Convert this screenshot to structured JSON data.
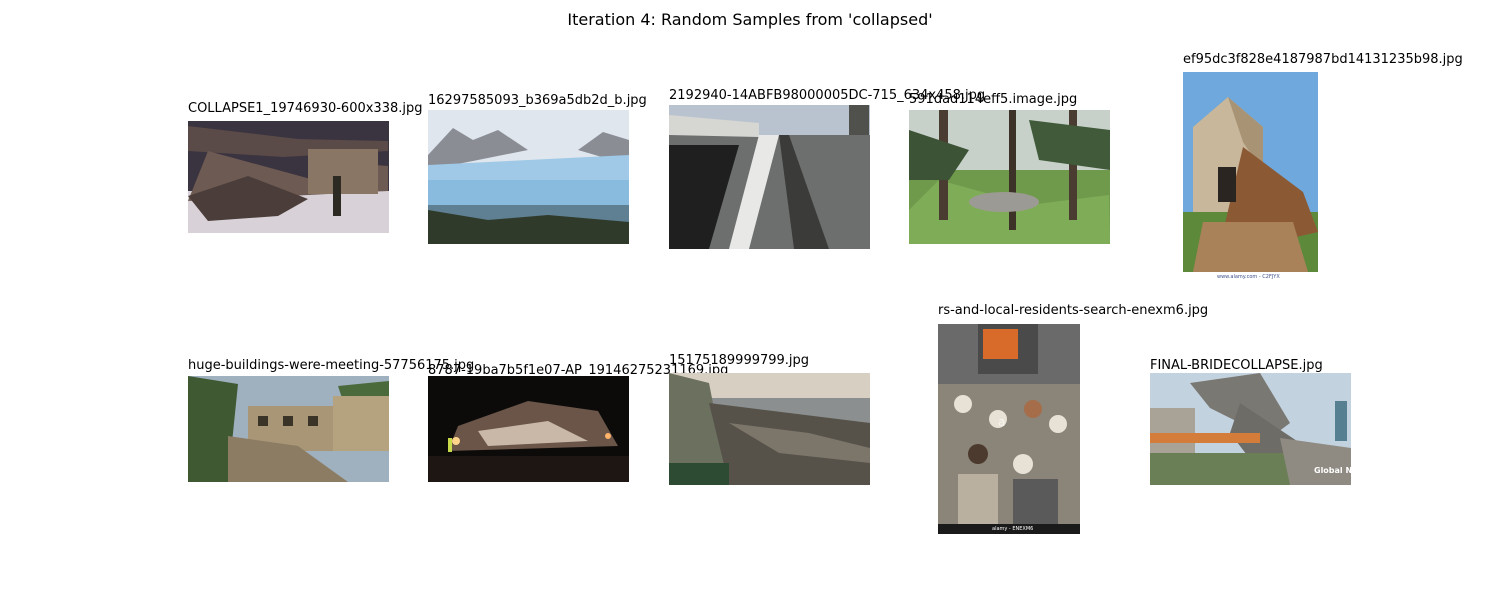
{
  "figure": {
    "title": "Iteration 4: Random Samples from 'collapsed'"
  },
  "samples": [
    {
      "filename": "COLLAPSE1_19746930-600x338.jpg"
    },
    {
      "filename": "16297585093_b369a5db2d_b.jpg"
    },
    {
      "filename": "2192940-14ABFB98000005DC-715_634x458.jpg"
    },
    {
      "filename": "591dad114eff5.image.jpg"
    },
    {
      "filename": "ef95dc3f828e4187987bd14131235b98.jpg",
      "caption": "www.alamy.com - C2FJYX"
    },
    {
      "filename": "huge-buildings-were-meeting-57756175.jpg"
    },
    {
      "filename": "8787-19ba7b5f1e07-AP_19146275231169.jpg"
    },
    {
      "filename": "15175189999799.jpg"
    },
    {
      "filename": "rs-and-local-residents-search-enexm6.jpg",
      "caption": "alamy - ENEXM6",
      "watermark": "alamy"
    },
    {
      "filename": "FINAL-BRIDECOLLAPSE.jpg",
      "watermark": "Global NEWS"
    }
  ]
}
